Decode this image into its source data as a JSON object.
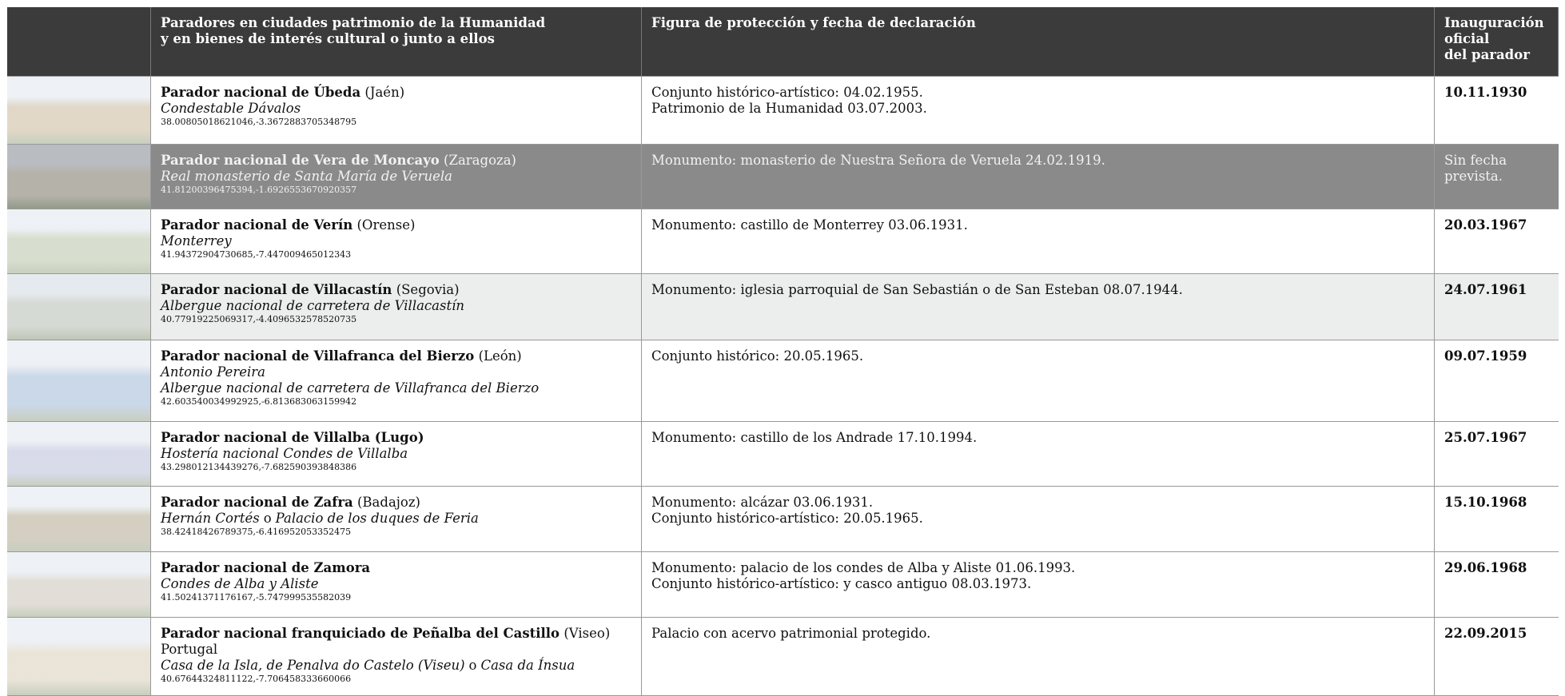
{
  "table": {
    "header": [
      [
        "Paradores en ciudades patrimonio de la Humanidad",
        "y en bienes de interés cultural o junto a ellos"
      ],
      [
        "Figura de protección y fecha de declaración"
      ],
      [
        "Inauguración",
        "oficial",
        "del parador"
      ]
    ],
    "rows": [
      {
        "name": "Parador nacional de Úbeda",
        "province": "(Jaén)",
        "lines": [
          [
            "Condestable Dávalos"
          ]
        ],
        "coords": "38.00805018621046,-3.3672883705348795",
        "protection": [
          "Conjunto histórico-artístico: 04.02.1955.",
          "Patrimonio de la Humanidad 03.07.2003."
        ],
        "date": "10.11.1930"
      },
      {
        "name": "Parador nacional de Vera de Moncayo",
        "province": "(Zaragoza)",
        "lines": [
          [
            "Real monasterio de Santa María de Veruela"
          ]
        ],
        "coords": "41.81200396475394,-1.6926553670920357",
        "protection": [
          "Monumento: monasterio de Nuestra Señora de Veruela 24.02.1919."
        ],
        "date": "Sin fecha prevista."
      },
      {
        "name": "Parador nacional de Verín",
        "province": "(Orense)",
        "lines": [
          [
            "Monterrey"
          ]
        ],
        "coords": "41.94372904730685,-7.447009465012343",
        "protection": [
          "Monumento: castillo de Monterrey 03.06.1931."
        ],
        "date": "20.03.1967"
      },
      {
        "name": "Parador nacional de Villacastín",
        "province": "(Segovia)",
        "lines": [
          [
            "Albergue nacional de carretera de Villacastín"
          ]
        ],
        "coords": "40.77919225069317,-4.4096532578520735",
        "protection": [
          "Monumento: iglesia parroquial de San Sebastián o de San Esteban 08.07.1944."
        ],
        "date": "24.07.1961"
      },
      {
        "name": "Parador nacional de Villafranca del Bierzo",
        "province": "(León)",
        "lines": [
          [
            "Antonio Pereira"
          ],
          [
            "Albergue nacional de carretera de Villafranca del Bierzo"
          ]
        ],
        "coords": "42.603540034992925,-6.813683063159942",
        "protection": [
          "Conjunto histórico: 20.05.1965."
        ],
        "date": "09.07.1959"
      },
      {
        "name": "Parador nacional de Villalba (Lugo)",
        "lines": [
          [
            "Hostería nacional Condes de Villalba"
          ]
        ],
        "coords": "43.298012134439276,-7.682590393848386",
        "protection": [
          "Monumento: castillo de los Andrade 17.10.1994."
        ],
        "date": "25.07.1967"
      },
      {
        "name": "Parador nacional de Zafra",
        "province": "(Badajoz)",
        "lines": [
          [
            "Hernán Cortés",
            "o",
            "Palacio de los duques de Feria"
          ]
        ],
        "coords": "38.42418426789375,-6.416952053352475",
        "protection": [
          "Monumento: alcázar 03.06.1931.",
          "Conjunto histórico-artístico: 20.05.1965."
        ],
        "date": "15.10.1968"
      },
      {
        "name": "Parador nacional de Zamora",
        "lines": [
          [
            "Condes de Alba y Aliste"
          ]
        ],
        "coords": "41.50241371176167,-5.747999535582039",
        "protection": [
          "Monumento: palacio de los condes de Alba y Aliste 01.06.1993.",
          "Conjunto histórico-artístico: y casco antiguo 08.03.1973."
        ],
        "date": "29.06.1968"
      },
      {
        "name": "Parador nacional franquiciado de Peñalba del Castillo",
        "province": "(Viseo)",
        "country": "Portugal",
        "lines": [
          [
            "Casa de la Isla, de Penalva do Castelo (Viseu)",
            "o",
            "Casa da Ínsua"
          ]
        ],
        "coords": "40.67644324811122,-7.706458333660066",
        "protection": [
          "Palacio con acervo patrimonial protegido."
        ],
        "date": "22.09.2015"
      }
    ]
  }
}
